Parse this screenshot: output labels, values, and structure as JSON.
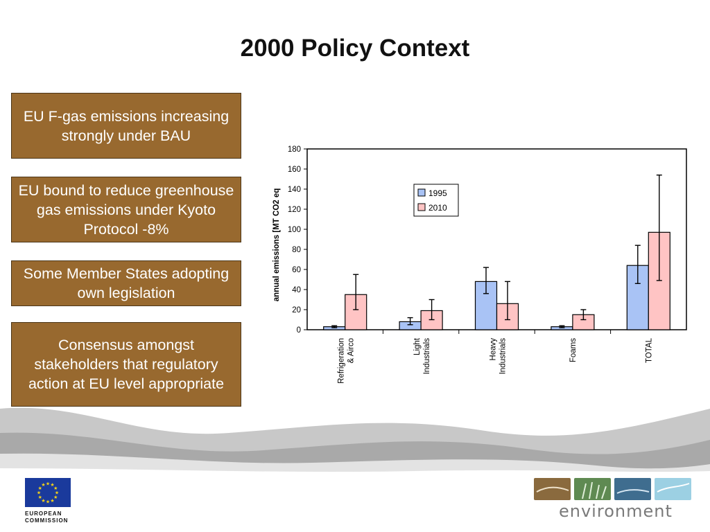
{
  "slide": {
    "title": "2000 Policy Context",
    "boxes": [
      "EU F-gas emissions increasing strongly under BAU",
      "EU bound to reduce greenhouse gas emissions under Kyoto Protocol -8%",
      "Some Member States adopting own legislation",
      "Consensus amongst stakeholders that regulatory action at EU level appropriate"
    ]
  },
  "footer": {
    "eu_label_line1": "EUROPEAN",
    "eu_label_line2": "COMMISSION",
    "env_label": "environment"
  },
  "colors": {
    "box_fill": "#98692f",
    "series_1995": "#a9c3f5",
    "series_2010": "#ffc4c4"
  },
  "chart_data": {
    "type": "bar",
    "categories": [
      "Refrigeration\n& Airco",
      "Light\nIndustrials",
      "Heavy\nIndustrials",
      "Foams",
      "TOTAL"
    ],
    "series": [
      {
        "name": "1995",
        "values": [
          3,
          8,
          48,
          3,
          64
        ],
        "error_low": [
          2,
          5,
          36,
          2,
          46
        ],
        "error_high": [
          4,
          12,
          62,
          4,
          84
        ]
      },
      {
        "name": "2010",
        "values": [
          35,
          19,
          26,
          15,
          97
        ],
        "error_low": [
          20,
          10,
          10,
          10,
          49
        ],
        "error_high": [
          55,
          30,
          48,
          20,
          154
        ]
      }
    ],
    "ylabel": "annual emissions [MT CO2 eq",
    "xlabel": "",
    "ylim": [
      0,
      180
    ],
    "yticks": [
      0,
      20,
      40,
      60,
      80,
      100,
      120,
      140,
      160,
      180
    ],
    "legend_position": "upper-middle",
    "grid": false
  }
}
